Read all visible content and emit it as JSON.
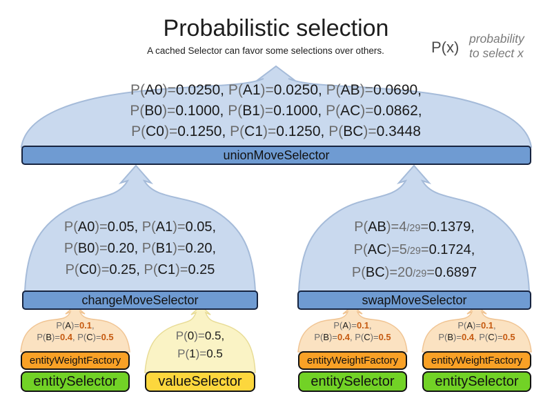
{
  "header": {
    "title": "Probabilistic selection",
    "subtitle": "A cached Selector can favor some selections over others.",
    "legend": {
      "symbol": "P(x)",
      "description": [
        "probability",
        "to select x"
      ]
    }
  },
  "palette": {
    "dome_blue_fill": "#c9d9ee",
    "dome_blue_stroke": "#a5bbd9",
    "bar_blue": "#6f9bd2",
    "bar_orange": "#f9a126",
    "bar_green": "#72d226",
    "bar_yellow": "#fcd73d",
    "dome_pale_orange": "#fbe2c1",
    "dome_pale_yellow": "#faf3c5",
    "text_gray": "#6b6b6b",
    "text_black": "#1a1a1a",
    "value_orange_bold": "#c55a11"
  },
  "union_selector": {
    "label": "unionMoveSelector",
    "prob_lines": [
      [
        {
          "t": "P(",
          "c": "g"
        },
        {
          "t": "A0",
          "c": "k"
        },
        {
          "t": ")=",
          "c": "g"
        },
        {
          "t": "0.0250, ",
          "c": "k"
        },
        {
          "t": "P(",
          "c": "g"
        },
        {
          "t": "A1",
          "c": "k"
        },
        {
          "t": ")=",
          "c": "g"
        },
        {
          "t": "0.0250, ",
          "c": "k"
        },
        {
          "t": "P(",
          "c": "g"
        },
        {
          "t": "AB",
          "c": "k"
        },
        {
          "t": ")=",
          "c": "g"
        },
        {
          "t": "0.0690,",
          "c": "k"
        }
      ],
      [
        {
          "t": "P(",
          "c": "g"
        },
        {
          "t": "B0",
          "c": "k"
        },
        {
          "t": ")=",
          "c": "g"
        },
        {
          "t": "0.1000, ",
          "c": "k"
        },
        {
          "t": "P(",
          "c": "g"
        },
        {
          "t": "B1",
          "c": "k"
        },
        {
          "t": ")=",
          "c": "g"
        },
        {
          "t": "0.1000, ",
          "c": "k"
        },
        {
          "t": "P(",
          "c": "g"
        },
        {
          "t": "AC",
          "c": "k"
        },
        {
          "t": ")=",
          "c": "g"
        },
        {
          "t": "0.0862,",
          "c": "k"
        }
      ],
      [
        {
          "t": "P(",
          "c": "g"
        },
        {
          "t": "C0",
          "c": "k"
        },
        {
          "t": ")=",
          "c": "g"
        },
        {
          "t": "0.1250, ",
          "c": "k"
        },
        {
          "t": "P(",
          "c": "g"
        },
        {
          "t": "C1",
          "c": "k"
        },
        {
          "t": ")=",
          "c": "g"
        },
        {
          "t": "0.1250, ",
          "c": "k"
        },
        {
          "t": "P(",
          "c": "g"
        },
        {
          "t": "BC",
          "c": "k"
        },
        {
          "t": ")=",
          "c": "g"
        },
        {
          "t": "0.3448",
          "c": "k"
        }
      ]
    ]
  },
  "change_selector": {
    "label": "changeMoveSelector",
    "prob_lines": [
      [
        {
          "t": "P(",
          "c": "g"
        },
        {
          "t": "A0",
          "c": "k"
        },
        {
          "t": ")=",
          "c": "g"
        },
        {
          "t": "0.05, ",
          "c": "k"
        },
        {
          "t": "P(",
          "c": "g"
        },
        {
          "t": "A1",
          "c": "k"
        },
        {
          "t": ")=",
          "c": "g"
        },
        {
          "t": "0.05,",
          "c": "k"
        }
      ],
      [
        {
          "t": "P(",
          "c": "g"
        },
        {
          "t": "B0",
          "c": "k"
        },
        {
          "t": ")=",
          "c": "g"
        },
        {
          "t": "0.20, ",
          "c": "k"
        },
        {
          "t": "P(",
          "c": "g"
        },
        {
          "t": "B1",
          "c": "k"
        },
        {
          "t": ")=",
          "c": "g"
        },
        {
          "t": "0.20,",
          "c": "k"
        }
      ],
      [
        {
          "t": "P(",
          "c": "g"
        },
        {
          "t": "C0",
          "c": "k"
        },
        {
          "t": ")=",
          "c": "g"
        },
        {
          "t": "0.25, ",
          "c": "k"
        },
        {
          "t": "P(",
          "c": "g"
        },
        {
          "t": "C1",
          "c": "k"
        },
        {
          "t": ")=",
          "c": "g"
        },
        {
          "t": "0.25",
          "c": "k"
        }
      ]
    ]
  },
  "swap_selector": {
    "label": "swapMoveSelector",
    "prob_lines": [
      [
        {
          "t": "P(",
          "c": "g"
        },
        {
          "t": "AB",
          "c": "k"
        },
        {
          "t": ")=",
          "c": "g"
        },
        {
          "t": "4",
          "c": "g"
        },
        {
          "t": "/29",
          "c": "f"
        },
        {
          "t": "=",
          "c": "g"
        },
        {
          "t": "0.1379,",
          "c": "k"
        }
      ],
      [
        {
          "t": "P(",
          "c": "g"
        },
        {
          "t": "AC",
          "c": "k"
        },
        {
          "t": ")=",
          "c": "g"
        },
        {
          "t": "5",
          "c": "g"
        },
        {
          "t": "/29",
          "c": "f"
        },
        {
          "t": "=",
          "c": "g"
        },
        {
          "t": "0.1724,",
          "c": "k"
        }
      ],
      [
        {
          "t": "P(",
          "c": "g"
        },
        {
          "t": "BC",
          "c": "k"
        },
        {
          "t": ")=",
          "c": "g"
        },
        {
          "t": "20",
          "c": "g"
        },
        {
          "t": "/29",
          "c": "f"
        },
        {
          "t": "=",
          "c": "g"
        },
        {
          "t": "0.6897",
          "c": "k"
        }
      ]
    ]
  },
  "entity_stack": {
    "weight_label": "entityWeightFactory",
    "selector_label": "entitySelector",
    "prob_lines": [
      [
        {
          "t": "P(",
          "c": "g"
        },
        {
          "t": "A",
          "c": "k"
        },
        {
          "t": ")=",
          "c": "g"
        },
        {
          "t": "0.1",
          "c": "o"
        },
        {
          "t": ",",
          "c": "g"
        }
      ],
      [
        {
          "t": "P(",
          "c": "g"
        },
        {
          "t": "B",
          "c": "k"
        },
        {
          "t": ")=",
          "c": "g"
        },
        {
          "t": "0.4",
          "c": "o"
        },
        {
          "t": ", ",
          "c": "g"
        },
        {
          "t": "P(",
          "c": "g"
        },
        {
          "t": "C",
          "c": "k"
        },
        {
          "t": ")=",
          "c": "g"
        },
        {
          "t": "0.5",
          "c": "o"
        }
      ]
    ]
  },
  "value_selector": {
    "label": "valueSelector",
    "prob_lines": [
      [
        {
          "t": "P(",
          "c": "g"
        },
        {
          "t": "0",
          "c": "k"
        },
        {
          "t": ")=",
          "c": "g"
        },
        {
          "t": "0.5,",
          "c": "k"
        }
      ],
      [
        {
          "t": "P(",
          "c": "g"
        },
        {
          "t": "1",
          "c": "k"
        },
        {
          "t": ")=",
          "c": "g"
        },
        {
          "t": "0.5",
          "c": "k"
        }
      ]
    ]
  }
}
